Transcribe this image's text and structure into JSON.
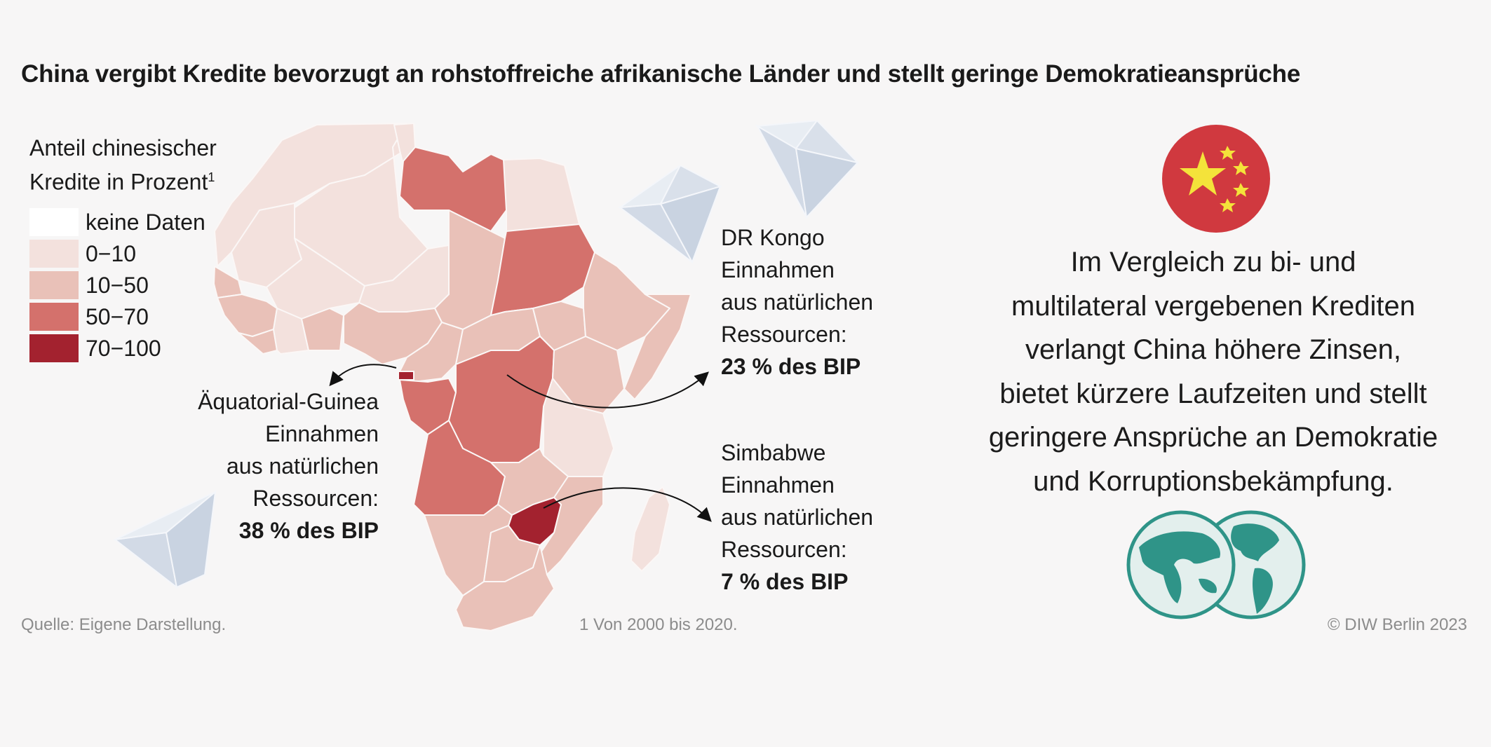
{
  "title": "China vergibt Kredite bevorzugt an rohstoffreiche afrikanische Länder und stellt geringe Demokratieansprüche",
  "legend": {
    "title_line1": "Anteil chinesischer",
    "title_line2": "Kredite",
    "title_unit": "in Prozent",
    "title_sup": "1",
    "items": [
      {
        "label": "keine Daten",
        "color": "#ffffff"
      },
      {
        "label": "0−10",
        "color": "#f3e1dd"
      },
      {
        "label": "10−50",
        "color": "#e9c1b8"
      },
      {
        "label": "50−70",
        "color": "#d4716c"
      },
      {
        "label": "70−100",
        "color": "#a3222f"
      }
    ]
  },
  "annotations": {
    "equatorial_guinea": {
      "name": "Äquatorial-Guinea",
      "line1": "Einnahmen",
      "line2": "aus natürlichen",
      "line3": "Ressourcen:",
      "value": "38 % des BIP"
    },
    "dr_congo": {
      "name": "DR Kongo",
      "line1": "Einnahmen",
      "line2": "aus natürlichen",
      "line3": "Ressourcen:",
      "value": "23 % des BIP"
    },
    "zimbabwe": {
      "name": "Simbabwe",
      "line1": "Einnahmen",
      "line2": "aus natürlichen",
      "line3": "Ressourcen:",
      "value": "7 % des BIP"
    }
  },
  "statement": {
    "lines": [
      "Im Vergleich zu bi- und",
      "multilateral vergebenen Krediten",
      "verlangt China höhere Zinsen,",
      "bietet kürzere Laufzeiten und stellt",
      "geringere Ansprüche an Demokratie",
      "und Korruptionsbekämpfung."
    ]
  },
  "footer": {
    "source": "Quelle: Eigene Darstellung.",
    "note": "1  Von 2000 bis 2020.",
    "copyright": "© DIW Berlin 2023"
  },
  "colors": {
    "background": "#f7f6f6",
    "flag_red": "#d0393f",
    "flag_star": "#f4e33a",
    "globe_teal": "#2f9488",
    "diamond": "#d5dde8"
  },
  "icons": [
    "diamond-icon",
    "china-flag-icon",
    "globe-icon",
    "arrow-icon"
  ]
}
